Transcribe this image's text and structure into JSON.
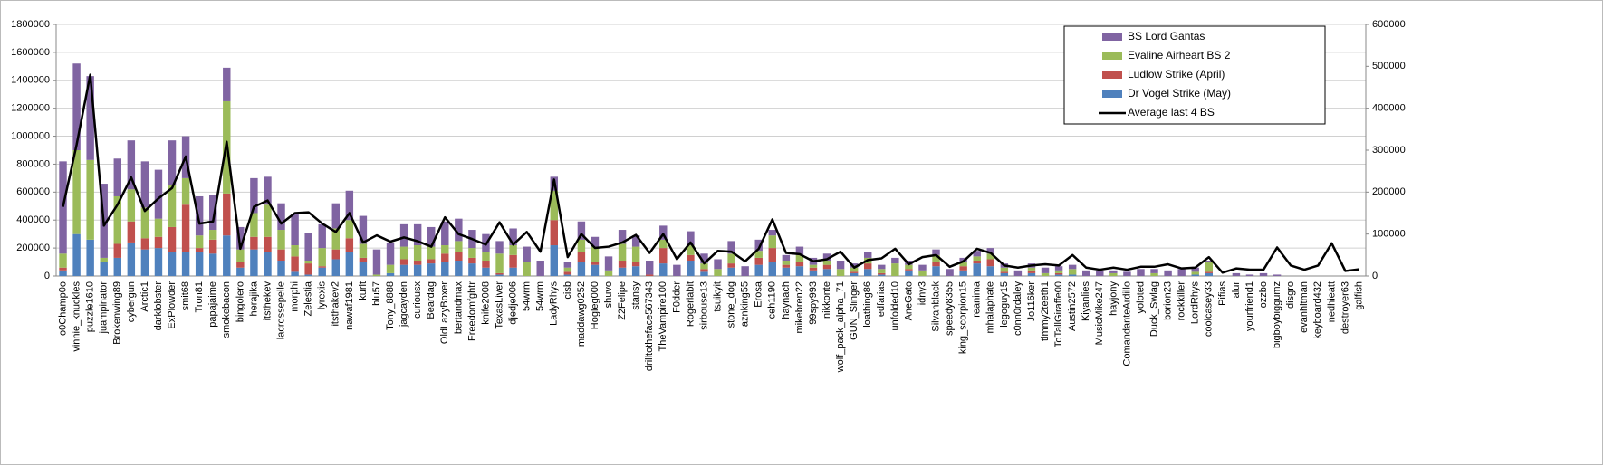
{
  "chart_data": {
    "type": "bar",
    "stacked": true,
    "grid": true,
    "legend": "upper right",
    "categories": [
      "o0Champ0o",
      "vinnie_knuckles",
      "puzzle1610",
      "juampinator",
      "Brokenwing89",
      "cybergun",
      "Arctic1",
      "darklobster",
      "ExPlowder",
      "smit68",
      "Tron81",
      "papajaime",
      "smokebacon",
      "bingolero",
      "herajika",
      "itsthekev",
      "lacrossepelle",
      "morphi",
      "Zelestia",
      "lyrexis",
      "itsthakev2",
      "nawaf1981",
      "kurlt",
      "blu57",
      "Tony_8888",
      "jagcayden",
      "curiousx",
      "Beardag",
      "OldLazyBoxer",
      "bertandmax",
      "Freedomfghtr",
      "knife2008",
      "TexasLiver",
      "djedje006",
      "54wrm",
      "54wrm",
      "LadyRhys",
      "cisb",
      "maddawg0252",
      "Hogleg000",
      "shuvo",
      "Z2Felipe",
      "stansy",
      "drilltotheface567343",
      "TheVampire100",
      "F0dder",
      "Rogerlabit",
      "sirbouse13",
      "tsuikyit",
      "stone_dog",
      "aznking55",
      "Erosa",
      "ceh1190",
      "haynach",
      "mikebren22",
      "99spy993",
      "nikkonte",
      "wolf_pack_alpha_71",
      "GUN_Slinger",
      "loathing86",
      "edfarias",
      "unfolded10",
      "AneGato",
      "idny3",
      "Silvanblack",
      "speedy8355",
      "king_scorpion15",
      "reanima",
      "mhalaphate",
      "legoguy15",
      "c0nn0rdaley",
      "Jo116ker",
      "timmy2teeth1",
      "ToTallGiraffe00",
      "Austin2572",
      "Kiyanlies",
      "MusicMike247",
      "hayjony",
      "ComandanteArdillo",
      "yoloted",
      "Duck_Swlag",
      "borion23",
      "rockkiller",
      "LordRhys",
      "coolcasey33",
      "Pifias",
      "alur",
      "yourfriend1",
      "ozzbo",
      "bigboybiggumz",
      "disgro",
      "evanhitman",
      "keyboard432",
      "nedhieatt",
      "destroyer63",
      "galfish"
    ],
    "ylim": [
      0,
      1800000
    ],
    "yticks": [
      0,
      200000,
      400000,
      600000,
      800000,
      1000000,
      1200000,
      1400000,
      1600000,
      1800000
    ],
    "y2lim": [
      0,
      600000
    ],
    "y2ticks": [
      0,
      100000,
      200000,
      300000,
      400000,
      500000,
      600000
    ],
    "series": [
      {
        "name": "Dr Vogel Strike (May)",
        "color": "#4f81bd",
        "type": "bar",
        "values": [
          40000,
          300000,
          260000,
          100000,
          130000,
          240000,
          190000,
          200000,
          170000,
          170000,
          170000,
          160000,
          290000,
          60000,
          190000,
          170000,
          110000,
          30000,
          10000,
          60000,
          120000,
          170000,
          100000,
          0,
          20000,
          80000,
          80000,
          90000,
          100000,
          110000,
          90000,
          60000,
          10000,
          60000,
          0,
          0,
          220000,
          10000,
          100000,
          80000,
          0,
          60000,
          70000,
          0,
          90000,
          0,
          110000,
          30000,
          0,
          60000,
          0,
          80000,
          100000,
          60000,
          70000,
          40000,
          50000,
          0,
          20000,
          50000,
          10000,
          0,
          40000,
          0,
          70000,
          0,
          40000,
          90000,
          70000,
          20000,
          0,
          20000,
          0,
          10000,
          10000,
          0,
          0,
          0,
          0,
          0,
          0,
          0,
          0,
          10000,
          20000,
          0,
          0,
          0,
          0,
          0,
          0,
          0,
          0,
          0,
          0,
          0
        ]
      },
      {
        "name": "Ludlow Strike (April)",
        "color": "#c0504d",
        "type": "bar",
        "values": [
          20000,
          0,
          0,
          0,
          100000,
          150000,
          80000,
          80000,
          180000,
          340000,
          30000,
          100000,
          300000,
          40000,
          90000,
          110000,
          80000,
          110000,
          80000,
          10000,
          70000,
          100000,
          30000,
          0,
          0,
          40000,
          30000,
          30000,
          60000,
          60000,
          40000,
          50000,
          10000,
          90000,
          0,
          0,
          180000,
          20000,
          70000,
          20000,
          0,
          50000,
          30000,
          10000,
          110000,
          0,
          40000,
          20000,
          0,
          30000,
          0,
          50000,
          100000,
          20000,
          30000,
          20000,
          30000,
          0,
          10000,
          40000,
          10000,
          0,
          10000,
          0,
          30000,
          0,
          30000,
          20000,
          50000,
          10000,
          0,
          20000,
          0,
          10000,
          0,
          0,
          0,
          0,
          0,
          0,
          0,
          0,
          0,
          0,
          10000,
          0,
          0,
          0,
          0,
          0,
          0,
          0,
          0,
          0,
          0,
          0
        ]
      },
      {
        "name": "Evaline Airheart BS 2",
        "color": "#9bbb59",
        "type": "bar",
        "values": [
          100000,
          600000,
          570000,
          30000,
          340000,
          230000,
          220000,
          130000,
          300000,
          190000,
          90000,
          70000,
          660000,
          90000,
          170000,
          230000,
          140000,
          80000,
          20000,
          130000,
          150000,
          130000,
          100000,
          10000,
          60000,
          90000,
          110000,
          90000,
          60000,
          80000,
          70000,
          60000,
          140000,
          70000,
          100000,
          0,
          210000,
          30000,
          90000,
          110000,
          40000,
          120000,
          110000,
          0,
          60000,
          0,
          70000,
          40000,
          50000,
          70000,
          0,
          50000,
          90000,
          30000,
          50000,
          20000,
          30000,
          50000,
          30000,
          40000,
          30000,
          90000,
          30000,
          40000,
          50000,
          0,
          30000,
          30000,
          40000,
          30000,
          0,
          20000,
          20000,
          20000,
          40000,
          0,
          0,
          20000,
          0,
          0,
          20000,
          0,
          0,
          20000,
          70000,
          0,
          0,
          0,
          0,
          0,
          0,
          0,
          0,
          0,
          0,
          0
        ]
      },
      {
        "name": "BS Lord Gantas",
        "color": "#8064a2",
        "type": "bar",
        "values": [
          660000,
          620000,
          600000,
          530000,
          270000,
          350000,
          330000,
          350000,
          320000,
          300000,
          280000,
          250000,
          240000,
          160000,
          250000,
          200000,
          190000,
          220000,
          200000,
          170000,
          180000,
          210000,
          200000,
          180000,
          160000,
          160000,
          150000,
          140000,
          170000,
          160000,
          130000,
          130000,
          90000,
          120000,
          110000,
          110000,
          100000,
          40000,
          130000,
          70000,
          100000,
          100000,
          80000,
          100000,
          100000,
          80000,
          100000,
          70000,
          70000,
          90000,
          70000,
          80000,
          40000,
          40000,
          60000,
          50000,
          50000,
          60000,
          30000,
          40000,
          30000,
          40000,
          30000,
          40000,
          40000,
          50000,
          30000,
          40000,
          40000,
          30000,
          40000,
          30000,
          40000,
          30000,
          30000,
          40000,
          40000,
          20000,
          30000,
          50000,
          30000,
          40000,
          50000,
          30000,
          10000,
          0,
          20000,
          10000,
          20000,
          10000,
          0,
          0,
          0,
          0,
          0,
          0
        ]
      },
      {
        "name": "Average last 4 BS",
        "color": "#000000",
        "type": "line",
        "axis": "y2",
        "values": [
          165000,
          313000,
          480000,
          120000,
          170000,
          235000,
          155000,
          185000,
          210000,
          285000,
          125000,
          130000,
          320000,
          65000,
          165000,
          180000,
          125000,
          150000,
          152000,
          125000,
          105000,
          150000,
          80000,
          97000,
          82000,
          92000,
          83000,
          70000,
          140000,
          100000,
          88000,
          75000,
          128000,
          75000,
          105000,
          58000,
          230000,
          45000,
          100000,
          67000,
          70000,
          80000,
          98000,
          55000,
          100000,
          40000,
          80000,
          30000,
          60000,
          58000,
          35000,
          65000,
          135000,
          55000,
          52000,
          35000,
          40000,
          58000,
          20000,
          38000,
          42000,
          65000,
          28000,
          45000,
          50000,
          22000,
          35000,
          65000,
          55000,
          25000,
          20000,
          25000,
          28000,
          25000,
          50000,
          20000,
          15000,
          20000,
          15000,
          22000,
          22000,
          28000,
          18000,
          20000,
          45000,
          8000,
          18000,
          15000,
          15000,
          68000,
          25000,
          15000,
          25000,
          78000,
          12000,
          16000
        ]
      }
    ]
  }
}
